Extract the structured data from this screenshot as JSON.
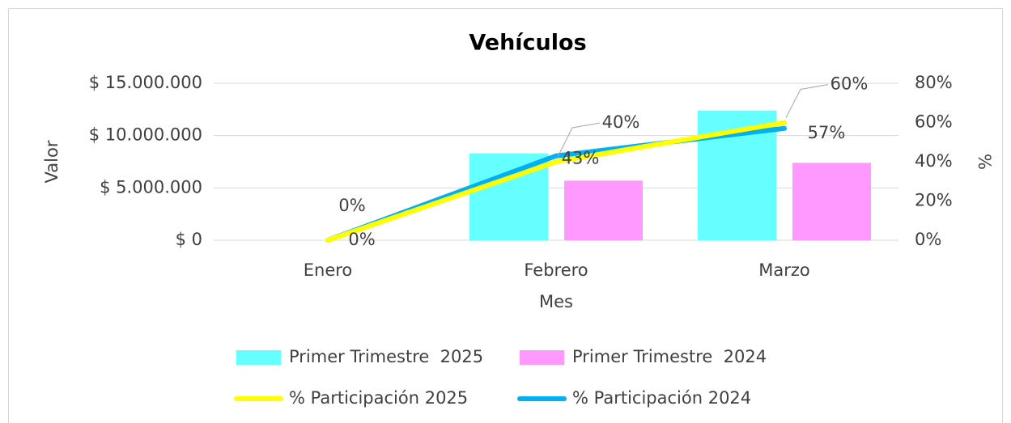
{
  "chart_data": {
    "type": "combo",
    "title": "Vehículos",
    "x_label": "Mes",
    "y_label": "Valor",
    "y2_label": "%",
    "categories": [
      "Enero",
      "Febrero",
      "Marzo"
    ],
    "series": [
      {
        "name": "Primer Trimestre  2025",
        "type": "bar",
        "color": "#66ffff",
        "values": [
          0,
          8300000,
          12400000
        ]
      },
      {
        "name": "Primer Trimestre  2024",
        "type": "bar",
        "color": "#ff99ff",
        "values": [
          0,
          5700000,
          7400000
        ]
      },
      {
        "name": "% Participación 2025",
        "type": "line",
        "axis": "y2",
        "color": "#ffff00",
        "values": [
          0,
          40,
          60
        ],
        "value_labels": [
          "0%",
          "40%",
          "60%"
        ]
      },
      {
        "name": "% Participación 2024",
        "type": "line",
        "axis": "y2",
        "color": "#00b0f0",
        "values": [
          0,
          43,
          57
        ],
        "value_labels": [
          "0%",
          "43%",
          "57%"
        ]
      }
    ],
    "ylim": [
      0,
      15000000
    ],
    "yticks": [
      {
        "value": 0,
        "label": "$ 0"
      },
      {
        "value": 5000000,
        "label": "$ 5.000.000"
      },
      {
        "value": 10000000,
        "label": "$ 10.000.000"
      },
      {
        "value": 15000000,
        "label": "$ 15.000.000"
      }
    ],
    "y2lim": [
      0,
      80
    ],
    "y2ticks": [
      {
        "value": 0,
        "label": "0%"
      },
      {
        "value": 20,
        "label": "20%"
      },
      {
        "value": 40,
        "label": "40%"
      },
      {
        "value": 60,
        "label": "60%"
      },
      {
        "value": 80,
        "label": "80%"
      }
    ],
    "grid": true,
    "legend": "bottom"
  }
}
